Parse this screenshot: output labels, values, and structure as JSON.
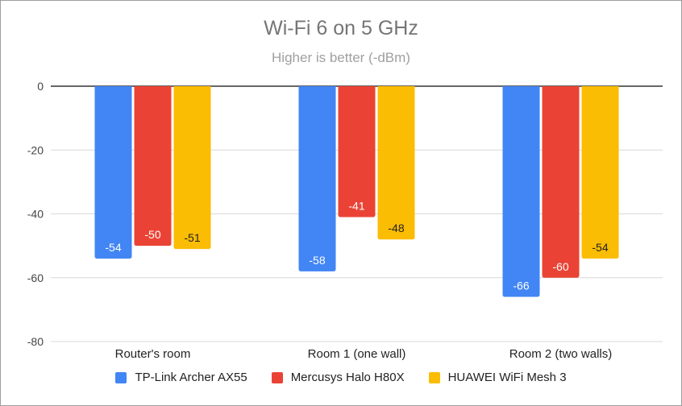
{
  "chart_data": {
    "type": "bar",
    "title": "Wi-Fi 6 on 5 GHz",
    "subtitle": "Higher is better (-dBm)",
    "xlabel": "",
    "ylabel": "",
    "categories": [
      "Router's room",
      "Room 1 (one wall)",
      "Room 2 (two walls)"
    ],
    "series": [
      {
        "name": "TP-Link Archer AX55",
        "color": "#4285f4",
        "values": [
          -54,
          -58,
          -66
        ]
      },
      {
        "name": "Mercusys Halo H80X",
        "color": "#ea4335",
        "values": [
          -50,
          -41,
          -60
        ]
      },
      {
        "name": "HUAWEI WiFi Mesh 3",
        "color": "#fbbc04",
        "values": [
          -51,
          -48,
          -54
        ]
      }
    ],
    "ylim": [
      -80,
      0
    ],
    "yticks": [
      0,
      -20,
      -40,
      -60,
      -80
    ],
    "ytick_labels": [
      "0",
      "-20",
      "-40",
      "-60",
      "-80"
    ],
    "grid": true,
    "legend_position": "bottom"
  }
}
